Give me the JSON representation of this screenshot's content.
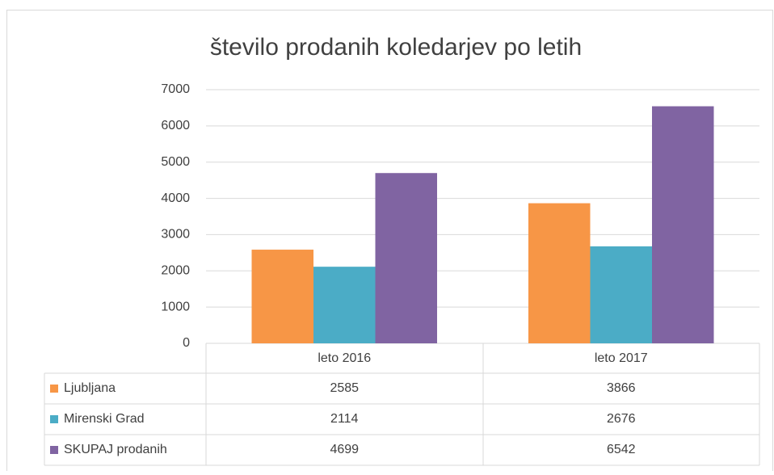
{
  "chart_data": {
    "type": "bar",
    "title": "število prodanih koledarjev po letih",
    "categories": [
      "leto 2016",
      "leto 2017"
    ],
    "series": [
      {
        "name": "Ljubljana",
        "color": "#f79646",
        "values": [
          2585,
          3866
        ]
      },
      {
        "name": "Mirenski Grad",
        "color": "#4bacc6",
        "values": [
          2114,
          2676
        ]
      },
      {
        "name": "SKUPAJ prodanih",
        "color": "#8064a2",
        "values": [
          4699,
          6542
        ]
      }
    ],
    "ylim": [
      0,
      7000
    ],
    "yticks": [
      0,
      1000,
      2000,
      3000,
      4000,
      5000,
      6000,
      7000
    ],
    "grid": true,
    "data_table": true
  }
}
